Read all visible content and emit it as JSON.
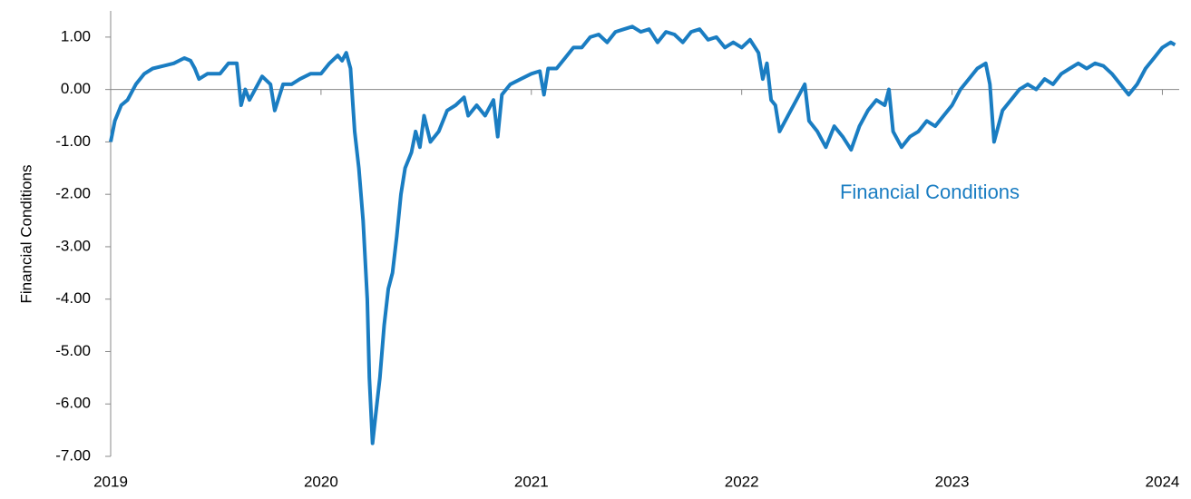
{
  "chart_data": {
    "type": "line",
    "y_label": "Financial Conditions",
    "annotation": "Financial Conditions",
    "xlim": [
      2019,
      2024.08
    ],
    "xticks": [
      2019,
      2020,
      2021,
      2022,
      2023,
      2024
    ],
    "ylim": [
      -7,
      1.5
    ],
    "yticks": [
      {
        "value": 1,
        "label": "1.00"
      },
      {
        "value": 0,
        "label": "0.00"
      },
      {
        "value": -1,
        "label": "-1.00"
      },
      {
        "value": -2,
        "label": "-2.00"
      },
      {
        "value": -3,
        "label": "-3.00"
      },
      {
        "value": -4,
        "label": "-4.00"
      },
      {
        "value": -5,
        "label": "-5.00"
      },
      {
        "value": -6,
        "label": "-6.00"
      },
      {
        "value": -7,
        "label": "-7.00"
      }
    ],
    "grid": false,
    "x": [
      2019.0,
      2019.02,
      2019.05,
      2019.08,
      2019.12,
      2019.16,
      2019.2,
      2019.25,
      2019.3,
      2019.35,
      2019.38,
      2019.4,
      2019.42,
      2019.46,
      2019.52,
      2019.56,
      2019.6,
      2019.62,
      2019.64,
      2019.66,
      2019.7,
      2019.72,
      2019.76,
      2019.78,
      2019.82,
      2019.86,
      2019.9,
      2019.95,
      2020.0,
      2020.04,
      2020.08,
      2020.1,
      2020.12,
      2020.14,
      2020.16,
      2020.18,
      2020.2,
      2020.22,
      2020.23,
      2020.245,
      2020.26,
      2020.28,
      2020.3,
      2020.32,
      2020.34,
      2020.36,
      2020.38,
      2020.4,
      2020.43,
      2020.45,
      2020.47,
      2020.49,
      2020.52,
      2020.56,
      2020.6,
      2020.64,
      2020.68,
      2020.7,
      2020.74,
      2020.78,
      2020.82,
      2020.84,
      2020.86,
      2020.9,
      2020.95,
      2021.0,
      2021.04,
      2021.06,
      2021.08,
      2021.12,
      2021.16,
      2021.2,
      2021.24,
      2021.28,
      2021.32,
      2021.36,
      2021.4,
      2021.44,
      2021.48,
      2021.52,
      2021.56,
      2021.6,
      2021.64,
      2021.68,
      2021.72,
      2021.76,
      2021.8,
      2021.84,
      2021.88,
      2021.92,
      2021.96,
      2022.0,
      2022.04,
      2022.08,
      2022.1,
      2022.12,
      2022.14,
      2022.16,
      2022.18,
      2022.22,
      2022.26,
      2022.3,
      2022.32,
      2022.36,
      2022.4,
      2022.44,
      2022.48,
      2022.52,
      2022.56,
      2022.6,
      2022.64,
      2022.68,
      2022.7,
      2022.72,
      2022.76,
      2022.8,
      2022.84,
      2022.88,
      2022.92,
      2022.96,
      2023.0,
      2023.04,
      2023.08,
      2023.12,
      2023.16,
      2023.18,
      2023.2,
      2023.24,
      2023.28,
      2023.32,
      2023.36,
      2023.4,
      2023.44,
      2023.48,
      2023.52,
      2023.56,
      2023.6,
      2023.64,
      2023.68,
      2023.72,
      2023.76,
      2023.8,
      2023.84,
      2023.88,
      2023.92,
      2023.96,
      2024.0,
      2024.04,
      2024.06
    ],
    "series": [
      {
        "name": "Financial Conditions",
        "color": "#1a7dc2",
        "values": [
          -1.0,
          -0.6,
          -0.3,
          -0.2,
          0.1,
          0.3,
          0.4,
          0.45,
          0.5,
          0.6,
          0.55,
          0.4,
          0.2,
          0.3,
          0.3,
          0.5,
          0.5,
          -0.3,
          0.0,
          -0.2,
          0.1,
          0.25,
          0.1,
          -0.4,
          0.1,
          0.1,
          0.2,
          0.3,
          0.3,
          0.5,
          0.65,
          0.55,
          0.7,
          0.4,
          -0.8,
          -1.5,
          -2.5,
          -4.0,
          -5.5,
          -6.75,
          -6.2,
          -5.5,
          -4.5,
          -3.8,
          -3.5,
          -2.8,
          -2.0,
          -1.5,
          -1.2,
          -0.8,
          -1.1,
          -0.5,
          -1.0,
          -0.8,
          -0.4,
          -0.3,
          -0.15,
          -0.5,
          -0.3,
          -0.5,
          -0.2,
          -0.9,
          -0.1,
          0.1,
          0.2,
          0.3,
          0.35,
          -0.1,
          0.4,
          0.4,
          0.6,
          0.8,
          0.8,
          1.0,
          1.05,
          0.9,
          1.1,
          1.15,
          1.2,
          1.1,
          1.15,
          0.9,
          1.1,
          1.05,
          0.9,
          1.1,
          1.15,
          0.95,
          1.0,
          0.8,
          0.9,
          0.8,
          0.95,
          0.7,
          0.2,
          0.5,
          -0.2,
          -0.3,
          -0.8,
          -0.5,
          -0.2,
          0.1,
          -0.6,
          -0.8,
          -1.1,
          -0.7,
          -0.9,
          -1.15,
          -0.7,
          -0.4,
          -0.2,
          -0.3,
          0.0,
          -0.8,
          -1.1,
          -0.9,
          -0.8,
          -0.6,
          -0.7,
          -0.5,
          -0.3,
          0.0,
          0.2,
          0.4,
          0.5,
          0.1,
          -1.0,
          -0.4,
          -0.2,
          0.0,
          0.1,
          0.0,
          0.2,
          0.1,
          0.3,
          0.4,
          0.5,
          0.4,
          0.5,
          0.45,
          0.3,
          0.1,
          -0.1,
          0.1,
          0.4,
          0.6,
          0.8,
          0.9,
          0.85
        ]
      }
    ]
  }
}
